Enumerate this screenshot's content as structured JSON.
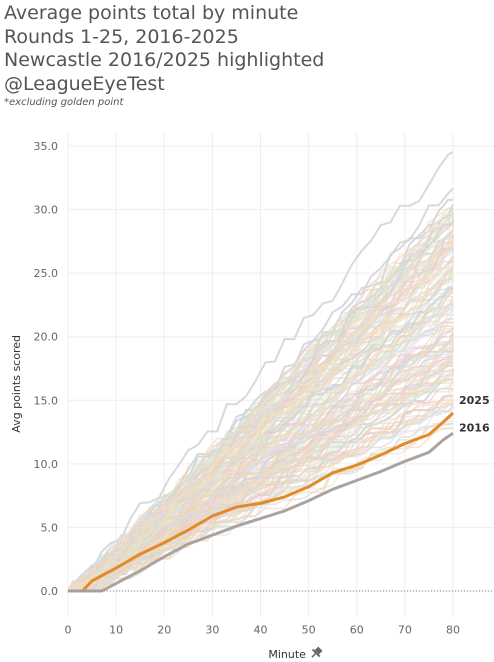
{
  "header": {
    "title_lines": [
      "Average points total by minute",
      "Rounds 1-25, 2016-2025",
      "Newcastle 2016/2025 highlighted",
      "@LeagueEyeTest"
    ],
    "footnote": "*excluding golden point"
  },
  "chart_data": {
    "type": "line",
    "xlabel": "Minute",
    "ylabel": "Avg points scored",
    "xlim": [
      0,
      89
    ],
    "ylim": [
      -2,
      36
    ],
    "x_ticks": [
      0,
      10,
      20,
      30,
      40,
      50,
      60,
      70,
      80
    ],
    "y_ticks": [
      0,
      5,
      10,
      15,
      20,
      25,
      30,
      35
    ],
    "y_tick_labels": [
      "0.0",
      "5.0",
      "10.0",
      "15.0",
      "20.0",
      "25.0",
      "30.0",
      "35.0"
    ],
    "grid": true,
    "zero_line": "dotted",
    "background_series_note_count": 160,
    "background_final_range": [
      12.5,
      34.0
    ],
    "highlighted_series": [
      {
        "name": "2025",
        "color": "#e08a2c",
        "points": [
          [
            0,
            0
          ],
          [
            3,
            0
          ],
          [
            5,
            0.8
          ],
          [
            7,
            1.2
          ],
          [
            10,
            1.8
          ],
          [
            15,
            2.9
          ],
          [
            20,
            3.8
          ],
          [
            25,
            4.8
          ],
          [
            30,
            5.9
          ],
          [
            35,
            6.6
          ],
          [
            40,
            6.9
          ],
          [
            45,
            7.4
          ],
          [
            50,
            8.2
          ],
          [
            55,
            9.3
          ],
          [
            60,
            9.9
          ],
          [
            65,
            10.7
          ],
          [
            70,
            11.6
          ],
          [
            75,
            12.3
          ],
          [
            78,
            13.3
          ],
          [
            80,
            14.0
          ]
        ]
      },
      {
        "name": "2016",
        "color": "#a9a4a1",
        "points": [
          [
            0,
            0
          ],
          [
            7,
            0
          ],
          [
            8,
            0.2
          ],
          [
            10,
            0.6
          ],
          [
            15,
            1.6
          ],
          [
            20,
            2.7
          ],
          [
            25,
            3.7
          ],
          [
            30,
            4.4
          ],
          [
            35,
            5.1
          ],
          [
            40,
            5.7
          ],
          [
            45,
            6.3
          ],
          [
            50,
            7.1
          ],
          [
            55,
            8.0
          ],
          [
            60,
            8.7
          ],
          [
            65,
            9.4
          ],
          [
            70,
            10.2
          ],
          [
            75,
            10.9
          ],
          [
            78,
            11.9
          ],
          [
            80,
            12.4
          ]
        ]
      }
    ]
  },
  "colors": {
    "background_palette": [
      "#c9d3dc",
      "#d8d5d2",
      "#f4d6b4",
      "#f3c7c3",
      "#d4e4d0",
      "#e6d7e6",
      "#f2e3bf",
      "#cfdde6",
      "#e0e0e0",
      "#f5cfb8"
    ],
    "axis_text": "#666666",
    "grid": "#eeeeee"
  }
}
